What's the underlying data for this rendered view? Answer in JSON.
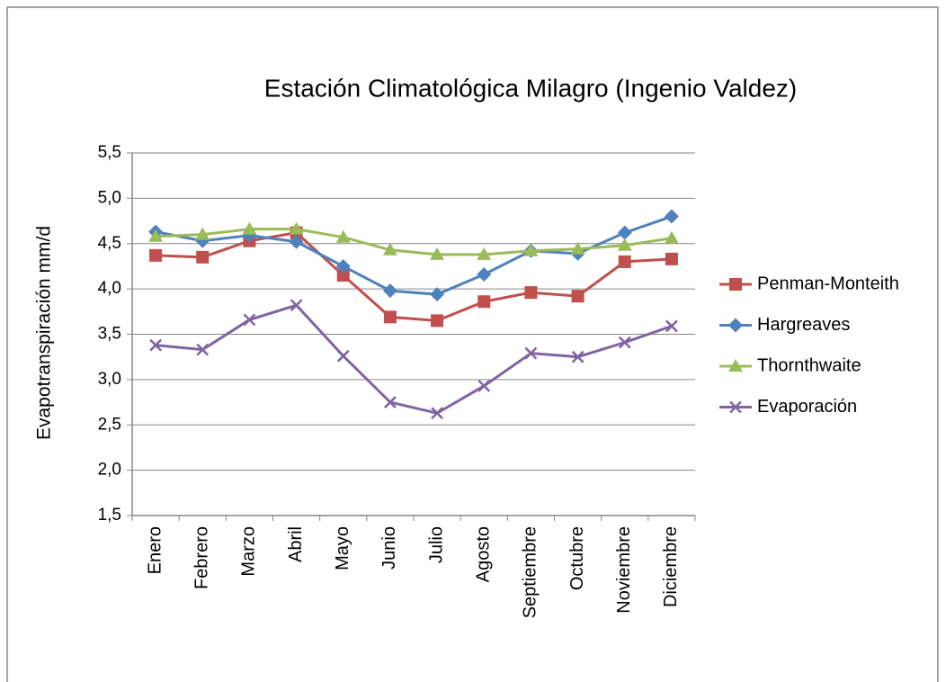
{
  "chart_data": {
    "type": "line",
    "title": "Estación Climatológica Milagro (Ingenio Valdez)",
    "y_label": "Evapotranspiración  mm/d",
    "categories": [
      "Enero",
      "Febrero",
      "Marzo",
      "Abril",
      "Mayo",
      "Junio",
      "Julio",
      "Agosto",
      "Septiembre",
      "Octubre",
      "Noviembre",
      "Diciembre"
    ],
    "series": [
      {
        "name": "Penman-Monteith",
        "color": "#c0504d",
        "marker": "square",
        "values": [
          4.37,
          4.35,
          4.53,
          4.62,
          4.15,
          3.69,
          3.65,
          3.86,
          3.96,
          3.92,
          4.3,
          4.33
        ]
      },
      {
        "name": "Hargreaves",
        "color": "#4f81bd",
        "marker": "diamond",
        "values": [
          4.63,
          4.53,
          4.59,
          4.52,
          4.25,
          3.98,
          3.94,
          4.16,
          4.42,
          4.39,
          4.62,
          4.8
        ]
      },
      {
        "name": "Thornthwaite",
        "color": "#9bbb59",
        "marker": "triangle",
        "values": [
          4.58,
          4.6,
          4.66,
          4.66,
          4.57,
          4.43,
          4.38,
          4.38,
          4.42,
          4.44,
          4.48,
          4.56
        ]
      },
      {
        "name": "Evaporación",
        "color": "#8064a2",
        "marker": "x",
        "values": [
          3.38,
          3.33,
          3.66,
          3.82,
          3.26,
          2.75,
          2.63,
          2.93,
          3.29,
          3.25,
          3.41,
          3.59
        ]
      }
    ],
    "ylim": [
      1.5,
      5.5
    ],
    "yticks": [
      {
        "value": 1.5,
        "label": "1,5"
      },
      {
        "value": 2.0,
        "label": "2,0"
      },
      {
        "value": 2.5,
        "label": "2,5"
      },
      {
        "value": 3.0,
        "label": "3,0"
      },
      {
        "value": 3.5,
        "label": "3,5"
      },
      {
        "value": 4.0,
        "label": "4,0"
      },
      {
        "value": 4.5,
        "label": "4,5"
      },
      {
        "value": 5.0,
        "label": "5,0"
      },
      {
        "value": 5.5,
        "label": "5,5"
      }
    ],
    "grid": true,
    "legend": "right"
  }
}
